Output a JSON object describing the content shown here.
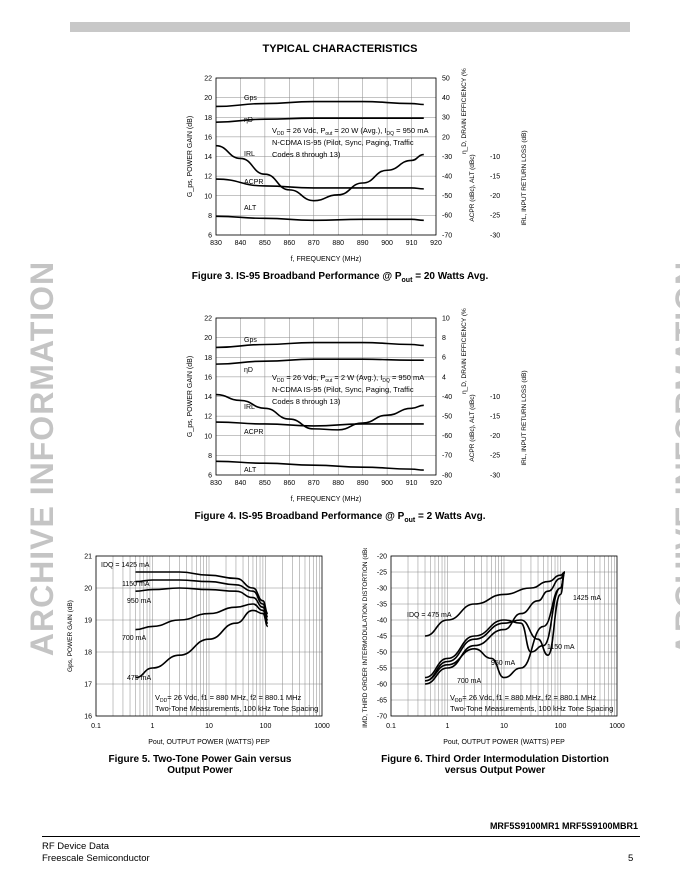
{
  "heading": "TYPICAL CHARACTERISTICS",
  "watermark": "ARCHIVE INFORMATION",
  "fig3": {
    "caption": "Figure 3. IS-95 Broadband Performance @ P",
    "caption_sub": "out",
    "caption_tail": " = 20 Watts Avg.",
    "cond1": "V",
    "cond1_tail": "= 26 Vdc, P",
    "cond1_tail2": "= 20 W (Avg.), I",
    "cond1_tail3": "= 950 mA",
    "cond2": "N-CDMA IS-95 (Pilot, Sync, Paging, Traffic",
    "cond3": "Codes 8 through 13)"
  },
  "fig4": {
    "caption": "Figure 4. IS-95 Broadband Performance @ P",
    "caption_sub": "out",
    "caption_tail": " = 2 Watts Avg.",
    "cond1_tail2": "= 2 W (Avg.), I",
    "cond1_tail3": "= 950 mA"
  },
  "fig5": {
    "caption_line1": "Figure 5. Two-Tone Power Gain versus",
    "caption_line2": "Output Power",
    "cond1": "= 26 Vdc, f1 = 880 MHz, f2 = 880.1 MHz",
    "cond2": "Two-Tone Measurements, 100 kHz Tone Spacing"
  },
  "fig6": {
    "caption_line1": "Figure 6. Third Order Intermodulation Distortion",
    "caption_line2": "versus Output Power",
    "cond1": "= 26 Vdc, f1 = 880 MHz, f2 = 880.1 MHz",
    "cond2": "Two-Tone Measurements, 100 kHz Tone Spacing"
  },
  "footer": {
    "part_numbers": "MRF5S9100MR1 MRF5S9100MBR1",
    "left1": "RF Device Data",
    "left2": "Freescale Semiconductor",
    "page": "5"
  },
  "chart_data": [
    {
      "type": "line",
      "id": "fig3",
      "x": [
        830,
        840,
        850,
        860,
        870,
        880,
        890,
        900,
        910,
        920
      ],
      "xlabel": "f, FREQUENCY (MHz)",
      "ylabel_left": "G_ps, POWER GAIN (dB)",
      "ylim_left": [
        6,
        22
      ],
      "yticks_left": [
        "6",
        "8",
        "10",
        "12",
        "14",
        "16",
        "18",
        "20",
        "22"
      ],
      "yticks_eff": [
        "50",
        "40",
        "30",
        "20"
      ],
      "ylabel_eff": "η_D, DRAIN EFFICIENCY (%)",
      "yticks_acpr": [
        "-30",
        "-40",
        "-50",
        "-60",
        "-70"
      ],
      "ylabel_acpr": "ACPR (dBc), ALT (dBc)",
      "yticks_irl": [
        "-10",
        "-15",
        "-20",
        "-25",
        "-30"
      ],
      "ylabel_irl": "IRL, INPUT RETURN LOSS (dB)",
      "series_labels": [
        "G_ps",
        "η_D",
        "IRL",
        "ACPR",
        "ALT"
      ],
      "series": [
        {
          "name": "G_ps",
          "x": [
            830,
            850,
            870,
            890,
            910,
            915
          ],
          "y": [
            19.1,
            19.4,
            19.6,
            19.6,
            19.4,
            19.3
          ]
        },
        {
          "name": "η_D",
          "x": [
            830,
            850,
            870,
            890,
            910,
            915
          ],
          "y": [
            17.5,
            17.8,
            17.9,
            17.9,
            17.9,
            17.9
          ]
        },
        {
          "name": "IRL",
          "x": [
            830,
            840,
            850,
            860,
            870,
            880,
            890,
            900,
            910,
            915
          ],
          "y": [
            15.1,
            13.8,
            12.2,
            10.6,
            9.5,
            10.1,
            11.3,
            12.6,
            13.6,
            14.2
          ]
        },
        {
          "name": "ACPR",
          "x": [
            830,
            850,
            870,
            890,
            910,
            915
          ],
          "y": [
            11.7,
            11.0,
            10.8,
            10.8,
            10.8,
            10.7
          ]
        },
        {
          "name": "ALT",
          "x": [
            830,
            850,
            870,
            890,
            910,
            915
          ],
          "y": [
            7.9,
            7.7,
            7.5,
            7.6,
            7.6,
            7.5
          ]
        }
      ]
    },
    {
      "type": "line",
      "id": "fig4",
      "x": [
        830,
        840,
        850,
        860,
        870,
        880,
        890,
        900,
        910,
        920
      ],
      "xlabel": "f, FREQUENCY (MHz)",
      "ylabel_left": "G_ps, POWER GAIN (dB)",
      "ylim_left": [
        6,
        22
      ],
      "yticks_left": [
        "6",
        "8",
        "10",
        "12",
        "14",
        "16",
        "18",
        "20",
        "22"
      ],
      "yticks_eff": [
        "10",
        "8",
        "6",
        "4"
      ],
      "ylabel_eff": "η_D, DRAIN EFFICIENCY (%)",
      "yticks_acpr": [
        "-40",
        "-50",
        "-60",
        "-70",
        "-80"
      ],
      "ylabel_acpr": "ACPR (dBc), ALT (dBc)",
      "yticks_irl": [
        "-10",
        "-15",
        "-20",
        "-25",
        "-30"
      ],
      "ylabel_irl": "IRL, INPUT RETURN LOSS (dB)",
      "series_labels": [
        "G_ps",
        "η_D",
        "IRL",
        "ACPR",
        "ALT"
      ],
      "series": [
        {
          "name": "G_ps",
          "x": [
            830,
            850,
            870,
            890,
            910,
            915
          ],
          "y": [
            19.0,
            19.3,
            19.5,
            19.5,
            19.3,
            19.2
          ]
        },
        {
          "name": "η_D",
          "x": [
            830,
            850,
            870,
            890,
            910,
            915
          ],
          "y": [
            17.3,
            17.6,
            17.8,
            17.8,
            17.7,
            17.7
          ]
        },
        {
          "name": "IRL",
          "x": [
            830,
            840,
            850,
            860,
            870,
            880,
            890,
            900,
            910,
            915
          ],
          "y": [
            14.2,
            13.6,
            12.8,
            11.7,
            10.7,
            10.6,
            11.3,
            12.1,
            12.8,
            13.1
          ]
        },
        {
          "name": "ACPR",
          "x": [
            830,
            850,
            870,
            890,
            910,
            915
          ],
          "y": [
            11.4,
            11.2,
            11.0,
            11.2,
            11.2,
            11.2
          ]
        },
        {
          "name": "ALT",
          "x": [
            830,
            850,
            870,
            890,
            910,
            915
          ],
          "y": [
            7.4,
            7.2,
            7.0,
            6.8,
            6.6,
            6.5
          ]
        }
      ]
    },
    {
      "type": "line",
      "id": "fig5",
      "x_scale": "log",
      "xlim": [
        0.1,
        1000
      ],
      "xticks": [
        "0.1",
        "1",
        "10",
        "100",
        "1000"
      ],
      "ylim": [
        16,
        21
      ],
      "yticks": [
        "16",
        "17",
        "18",
        "19",
        "20",
        "21"
      ],
      "ylabel": "G_ps, POWER GAIN (dB)",
      "xlabel": "P_out, OUTPUT POWER (WATTS) PEP",
      "series_labels": [
        "I_DQ = 1425 mA",
        "1150 mA",
        "950 mA",
        "700 mA",
        "475 mA"
      ],
      "series": [
        {
          "name": "1425 mA",
          "x": [
            0.5,
            1,
            3,
            10,
            30,
            60,
            90,
            110
          ],
          "y": [
            20.5,
            20.5,
            20.5,
            20.4,
            20.3,
            20.0,
            19.6,
            19.2
          ]
        },
        {
          "name": "1150 mA",
          "x": [
            0.5,
            1,
            3,
            10,
            30,
            60,
            90,
            110
          ],
          "y": [
            20.2,
            20.25,
            20.25,
            20.2,
            20.1,
            19.9,
            19.5,
            19.1
          ]
        },
        {
          "name": "950 mA",
          "x": [
            0.5,
            1,
            3,
            10,
            30,
            60,
            90,
            110
          ],
          "y": [
            19.9,
            19.95,
            20.0,
            19.95,
            19.9,
            19.7,
            19.4,
            19.0
          ]
        },
        {
          "name": "700 mA",
          "x": [
            0.5,
            1,
            3,
            10,
            30,
            60,
            90,
            110
          ],
          "y": [
            18.7,
            18.8,
            19.0,
            19.2,
            19.4,
            19.5,
            19.3,
            18.9
          ]
        },
        {
          "name": "475 mA",
          "x": [
            0.5,
            1,
            3,
            10,
            30,
            60,
            90,
            110
          ],
          "y": [
            17.2,
            17.5,
            17.9,
            18.4,
            18.9,
            19.3,
            19.2,
            18.8
          ]
        }
      ]
    },
    {
      "type": "line",
      "id": "fig6",
      "x_scale": "log",
      "xlim": [
        0.1,
        1000
      ],
      "xticks": [
        "0.1",
        "1",
        "10",
        "100",
        "1000"
      ],
      "ylim": [
        -70,
        -20
      ],
      "yticks": [
        "-20",
        "-25",
        "-30",
        "-35",
        "-40",
        "-45",
        "-50",
        "-55",
        "-60",
        "-65",
        "-70"
      ],
      "ylabel": "IMD, THIRD ORDER INTERMODULATION DISTORTION (dBc)",
      "xlabel": "P_out, OUTPUT POWER (WATTS) PEP",
      "series_labels": [
        "1425 mA",
        "I_DQ = 475 mA",
        "1150 mA",
        "950 mA",
        "700 mA"
      ],
      "series": [
        {
          "name": "475 mA",
          "x": [
            0.4,
            1,
            3,
            10,
            30,
            60,
            100,
            120
          ],
          "y": [
            -45,
            -40,
            -35,
            -32,
            -30,
            -28,
            -26,
            -25
          ]
        },
        {
          "name": "1425 mA",
          "x": [
            0.4,
            1,
            3,
            10,
            20,
            40,
            60,
            100,
            120
          ],
          "y": [
            -60,
            -55,
            -48,
            -43,
            -38,
            -34,
            -31,
            -27,
            -25
          ]
        },
        {
          "name": "1150 mA",
          "x": [
            0.4,
            1,
            3,
            10,
            20,
            40,
            60,
            100,
            120
          ],
          "y": [
            -59,
            -53,
            -46,
            -41,
            -40,
            -46,
            -51,
            -32,
            -25
          ]
        },
        {
          "name": "950 mA",
          "x": [
            0.4,
            1,
            3,
            10,
            20,
            30,
            50,
            100,
            120
          ],
          "y": [
            -58,
            -52,
            -45,
            -40,
            -41,
            -50,
            -48,
            -30,
            -25
          ]
        },
        {
          "name": "700 mA",
          "x": [
            0.4,
            1,
            3,
            6,
            10,
            20,
            50,
            100,
            120
          ],
          "y": [
            -59,
            -54,
            -49,
            -52,
            -58,
            -55,
            -42,
            -30,
            -25
          ]
        }
      ]
    }
  ]
}
